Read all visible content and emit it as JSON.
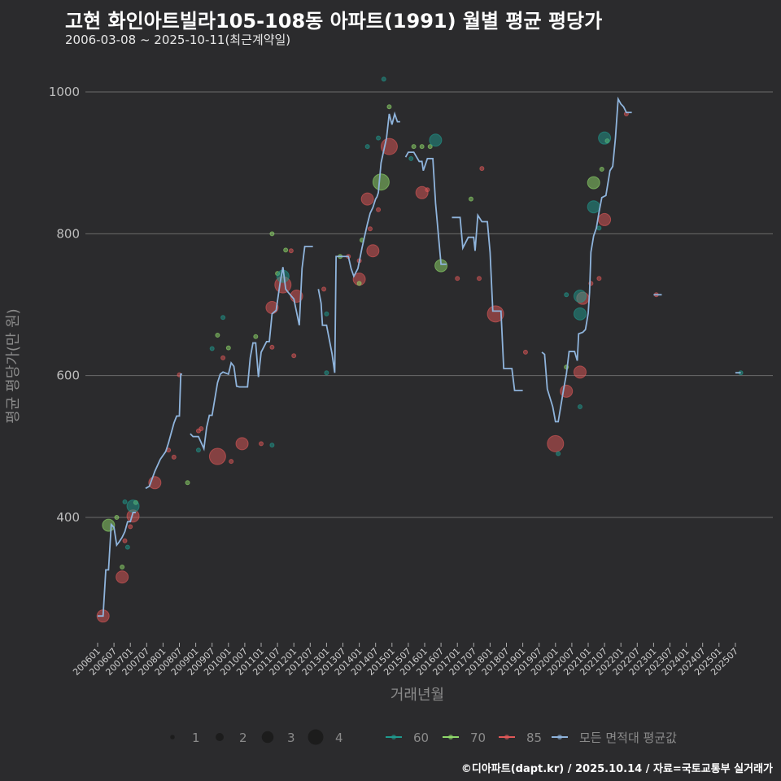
{
  "title": "고현 화인아트빌라105-108동 아파트(1991) 월별 평균 평당가",
  "subtitle": "2006-03-08 ~ 2025-10-11(최근계약일)",
  "credit": "©디아파트(dapt.kr) / 2025.10.14 / 자료=국토교통부 실거래가",
  "colors": {
    "background": "#2b2b2d",
    "grid": "#6b6b6b",
    "s60": "#1f9a8e",
    "s70": "#8fd96a",
    "s85": "#e05858",
    "avg": "#8fb4dc"
  },
  "chart_data": {
    "type": "scatter",
    "title": "고현 화인아트빌라105-108동 아파트(1991) 월별 평균 평당가",
    "xlabel": "거래년월",
    "ylabel": "평균 평당가(만 원)",
    "x_unit": "months since 2006-01",
    "ylim": [
      255,
      1050
    ],
    "y_ticks": [
      400,
      600,
      800,
      1000
    ],
    "x_tick_labels": [
      "200601",
      "200607",
      "200701",
      "200707",
      "200801",
      "200807",
      "200901",
      "200907",
      "201001",
      "201007",
      "201101",
      "201107",
      "201201",
      "201207",
      "201301",
      "201307",
      "201401",
      "201407",
      "201501",
      "201507",
      "201601",
      "201607",
      "201701",
      "201707",
      "201801",
      "201807",
      "201901",
      "201907",
      "202001",
      "202007",
      "202101",
      "202107",
      "202201",
      "202207",
      "202301",
      "202307",
      "202401",
      "202407",
      "202501",
      "202507"
    ],
    "grid": true,
    "legend": {
      "position": "bottom",
      "size_title": "",
      "sizes": [
        {
          "label": "1",
          "value": 1
        },
        {
          "label": "2",
          "value": 2
        },
        {
          "label": "3",
          "value": 3
        },
        {
          "label": "4",
          "value": 4
        }
      ],
      "series": [
        {
          "label": "60",
          "key": "s60"
        },
        {
          "label": "70",
          "key": "s70"
        },
        {
          "label": "85",
          "key": "s85"
        },
        {
          "label": "모든 면적대 평균값",
          "key": "avg"
        }
      ]
    },
    "average_line_segments": [
      [
        [
          0,
          261
        ],
        [
          2,
          261
        ],
        [
          3,
          326
        ],
        [
          4,
          326
        ],
        [
          5,
          390
        ],
        [
          6,
          386
        ],
        [
          7,
          361
        ],
        [
          8,
          366
        ],
        [
          9,
          372
        ],
        [
          10,
          380
        ],
        [
          11,
          394
        ],
        [
          12,
          394
        ],
        [
          13,
          407
        ],
        [
          14,
          407
        ]
      ],
      [
        [
          17.6,
          441
        ],
        [
          19,
          444
        ],
        [
          21,
          465
        ],
        [
          23,
          482
        ],
        [
          25,
          493
        ],
        [
          26,
          505
        ],
        [
          28,
          533
        ],
        [
          29,
          543
        ],
        [
          30,
          543
        ],
        [
          30.5,
          602
        ],
        [
          31,
          602
        ]
      ],
      [
        [
          34,
          518
        ],
        [
          35,
          514
        ],
        [
          37,
          514
        ],
        [
          39,
          497
        ],
        [
          40,
          527
        ],
        [
          41,
          544
        ],
        [
          42,
          544
        ],
        [
          44,
          590
        ],
        [
          45,
          602
        ],
        [
          46,
          605
        ],
        [
          48,
          602
        ],
        [
          49,
          618
        ],
        [
          50,
          613
        ],
        [
          51,
          585
        ],
        [
          52,
          584
        ],
        [
          55,
          584
        ],
        [
          56,
          625
        ],
        [
          57,
          646
        ],
        [
          58,
          646
        ],
        [
          59,
          598
        ],
        [
          60,
          633
        ],
        [
          62,
          648
        ],
        [
          63,
          648
        ],
        [
          64,
          687
        ],
        [
          65.5,
          692
        ],
        [
          67,
          732
        ],
        [
          68,
          753
        ],
        [
          69,
          722
        ],
        [
          70,
          717
        ],
        [
          72,
          708
        ],
        [
          74,
          671
        ],
        [
          75,
          751
        ],
        [
          76,
          782
        ],
        [
          79,
          782
        ]
      ],
      [
        [
          81,
          722
        ],
        [
          82,
          702
        ],
        [
          82.5,
          671
        ],
        [
          84,
          671
        ],
        [
          86,
          631
        ],
        [
          87,
          604
        ],
        [
          87.5,
          768
        ],
        [
          92,
          768
        ],
        [
          93,
          751
        ],
        [
          94,
          740
        ],
        [
          95.5,
          751
        ],
        [
          97,
          780
        ],
        [
          99,
          814
        ],
        [
          100,
          829
        ],
        [
          101,
          837
        ],
        [
          102,
          849
        ],
        [
          102.5,
          852
        ],
        [
          103,
          858
        ],
        [
          104,
          900
        ],
        [
          106,
          935
        ],
        [
          107,
          969
        ],
        [
          108,
          954
        ],
        [
          109,
          969
        ],
        [
          110,
          958
        ],
        [
          111,
          958
        ]
      ],
      [
        [
          113,
          908
        ],
        [
          114,
          915
        ],
        [
          116,
          915
        ],
        [
          118,
          902
        ],
        [
          119,
          902
        ],
        [
          119.5,
          889
        ],
        [
          121,
          906
        ],
        [
          123,
          906
        ],
        [
          124,
          843
        ],
        [
          126,
          757
        ],
        [
          128,
          757
        ]
      ],
      [
        [
          130,
          823
        ],
        [
          133,
          823
        ],
        [
          134,
          780
        ],
        [
          136,
          795
        ],
        [
          138,
          795
        ],
        [
          138.5,
          776
        ],
        [
          139.5,
          826
        ],
        [
          141,
          817
        ],
        [
          143,
          817
        ],
        [
          144,
          774
        ],
        [
          145,
          691
        ],
        [
          148,
          691
        ],
        [
          149,
          610
        ],
        [
          152,
          610
        ],
        [
          153,
          579
        ],
        [
          156,
          579
        ]
      ],
      [
        [
          163,
          633
        ],
        [
          164,
          630
        ],
        [
          165,
          581
        ],
        [
          167,
          556
        ],
        [
          168,
          535
        ],
        [
          169,
          535
        ],
        [
          171,
          581
        ],
        [
          172,
          602
        ],
        [
          173,
          634
        ],
        [
          175,
          634
        ],
        [
          176,
          621
        ],
        [
          176.5,
          659
        ],
        [
          178,
          661
        ],
        [
          179,
          665
        ],
        [
          180,
          688
        ],
        [
          180.5,
          717
        ],
        [
          181,
          774
        ],
        [
          182,
          797
        ],
        [
          183,
          808
        ],
        [
          184,
          831
        ],
        [
          185,
          851
        ],
        [
          186.5,
          854
        ],
        [
          188,
          889
        ],
        [
          189,
          895
        ],
        [
          190,
          935
        ],
        [
          190.5,
          963
        ],
        [
          191,
          990
        ],
        [
          192,
          983
        ],
        [
          193,
          979
        ],
        [
          194,
          971
        ],
        [
          196,
          971
        ]
      ],
      [
        [
          204,
          714
        ],
        [
          207,
          714
        ]
      ],
      [
        [
          234,
          604
        ],
        [
          236,
          604
        ]
      ]
    ],
    "points": [
      {
        "area": "85",
        "x": 2,
        "y": 261,
        "count": 3
      },
      {
        "area": "85",
        "x": 9,
        "y": 316,
        "count": 3
      },
      {
        "area": "85",
        "x": 13,
        "y": 402,
        "count": 3
      },
      {
        "area": "85",
        "x": 21,
        "y": 449,
        "count": 3
      },
      {
        "area": "85",
        "x": 44,
        "y": 486,
        "count": 4
      },
      {
        "area": "85",
        "x": 53,
        "y": 504,
        "count": 3
      },
      {
        "area": "85",
        "x": 64,
        "y": 696,
        "count": 3
      },
      {
        "area": "85",
        "x": 68,
        "y": 728,
        "count": 4
      },
      {
        "area": "85",
        "x": 73,
        "y": 712,
        "count": 3
      },
      {
        "area": "85",
        "x": 96,
        "y": 736,
        "count": 3
      },
      {
        "area": "85",
        "x": 99,
        "y": 849,
        "count": 3
      },
      {
        "area": "85",
        "x": 101,
        "y": 776,
        "count": 3
      },
      {
        "area": "85",
        "x": 107,
        "y": 923,
        "count": 4
      },
      {
        "area": "85",
        "x": 119,
        "y": 858,
        "count": 3
      },
      {
        "area": "85",
        "x": 146,
        "y": 687,
        "count": 4
      },
      {
        "area": "85",
        "x": 168,
        "y": 504,
        "count": 4
      },
      {
        "area": "85",
        "x": 172,
        "y": 578,
        "count": 3
      },
      {
        "area": "85",
        "x": 177,
        "y": 605,
        "count": 3
      },
      {
        "area": "85",
        "x": 178,
        "y": 709,
        "count": 3
      },
      {
        "area": "85",
        "x": 186,
        "y": 820,
        "count": 3
      },
      {
        "area": "85",
        "x": 10,
        "y": 367,
        "count": 1
      },
      {
        "area": "85",
        "x": 12,
        "y": 387,
        "count": 1
      },
      {
        "area": "85",
        "x": 26,
        "y": 495,
        "count": 1
      },
      {
        "area": "85",
        "x": 28,
        "y": 485,
        "count": 1
      },
      {
        "area": "85",
        "x": 30,
        "y": 601,
        "count": 1
      },
      {
        "area": "85",
        "x": 37,
        "y": 522,
        "count": 1
      },
      {
        "area": "85",
        "x": 38,
        "y": 525,
        "count": 1
      },
      {
        "area": "85",
        "x": 46,
        "y": 625,
        "count": 1
      },
      {
        "area": "85",
        "x": 49,
        "y": 479,
        "count": 1
      },
      {
        "area": "85",
        "x": 60,
        "y": 504,
        "count": 1
      },
      {
        "area": "85",
        "x": 64,
        "y": 640,
        "count": 1
      },
      {
        "area": "85",
        "x": 71,
        "y": 776,
        "count": 1
      },
      {
        "area": "85",
        "x": 72,
        "y": 628,
        "count": 1
      },
      {
        "area": "85",
        "x": 83,
        "y": 722,
        "count": 1
      },
      {
        "area": "85",
        "x": 92,
        "y": 768,
        "count": 1
      },
      {
        "area": "85",
        "x": 96,
        "y": 762,
        "count": 1
      },
      {
        "area": "85",
        "x": 100,
        "y": 807,
        "count": 1
      },
      {
        "area": "85",
        "x": 103,
        "y": 834,
        "count": 1
      },
      {
        "area": "85",
        "x": 121,
        "y": 862,
        "count": 1
      },
      {
        "area": "85",
        "x": 132,
        "y": 737,
        "count": 1
      },
      {
        "area": "85",
        "x": 140,
        "y": 737,
        "count": 1
      },
      {
        "area": "85",
        "x": 141,
        "y": 892,
        "count": 1
      },
      {
        "area": "85",
        "x": 157,
        "y": 633,
        "count": 1
      },
      {
        "area": "85",
        "x": 181,
        "y": 730,
        "count": 1
      },
      {
        "area": "85",
        "x": 184,
        "y": 737,
        "count": 1
      },
      {
        "area": "85",
        "x": 194,
        "y": 969,
        "count": 1
      },
      {
        "area": "85",
        "x": 205,
        "y": 714,
        "count": 1
      },
      {
        "area": "70",
        "x": 4,
        "y": 389,
        "count": 3
      },
      {
        "area": "70",
        "x": 104,
        "y": 873,
        "count": 4
      },
      {
        "area": "70",
        "x": 126,
        "y": 755,
        "count": 3
      },
      {
        "area": "70",
        "x": 182,
        "y": 872,
        "count": 3
      },
      {
        "area": "70",
        "x": 7,
        "y": 400,
        "count": 1
      },
      {
        "area": "70",
        "x": 9,
        "y": 330,
        "count": 1
      },
      {
        "area": "70",
        "x": 14,
        "y": 421,
        "count": 1
      },
      {
        "area": "70",
        "x": 33,
        "y": 449,
        "count": 1
      },
      {
        "area": "70",
        "x": 44,
        "y": 657,
        "count": 1
      },
      {
        "area": "70",
        "x": 48,
        "y": 639,
        "count": 1
      },
      {
        "area": "70",
        "x": 58,
        "y": 655,
        "count": 1
      },
      {
        "area": "70",
        "x": 64,
        "y": 800,
        "count": 1
      },
      {
        "area": "70",
        "x": 66,
        "y": 744,
        "count": 1
      },
      {
        "area": "70",
        "x": 69,
        "y": 777,
        "count": 1
      },
      {
        "area": "70",
        "x": 89,
        "y": 768,
        "count": 1
      },
      {
        "area": "70",
        "x": 96,
        "y": 730,
        "count": 1
      },
      {
        "area": "70",
        "x": 97,
        "y": 791,
        "count": 1
      },
      {
        "area": "70",
        "x": 107,
        "y": 979,
        "count": 1
      },
      {
        "area": "70",
        "x": 116,
        "y": 923,
        "count": 1
      },
      {
        "area": "70",
        "x": 119,
        "y": 923,
        "count": 1
      },
      {
        "area": "70",
        "x": 122,
        "y": 923,
        "count": 1
      },
      {
        "area": "70",
        "x": 137,
        "y": 849,
        "count": 1
      },
      {
        "area": "70",
        "x": 172,
        "y": 612,
        "count": 1
      },
      {
        "area": "70",
        "x": 185,
        "y": 891,
        "count": 1
      },
      {
        "area": "70",
        "x": 187,
        "y": 931,
        "count": 1
      },
      {
        "area": "60",
        "x": 13,
        "y": 416,
        "count": 3
      },
      {
        "area": "60",
        "x": 68,
        "y": 740,
        "count": 3
      },
      {
        "area": "60",
        "x": 124,
        "y": 932,
        "count": 3
      },
      {
        "area": "60",
        "x": 177,
        "y": 712,
        "count": 3
      },
      {
        "area": "60",
        "x": 177,
        "y": 687,
        "count": 3
      },
      {
        "area": "60",
        "x": 182,
        "y": 838,
        "count": 3
      },
      {
        "area": "60",
        "x": 186,
        "y": 935,
        "count": 3
      },
      {
        "area": "60",
        "x": 10,
        "y": 422,
        "count": 1
      },
      {
        "area": "60",
        "x": 11,
        "y": 358,
        "count": 1
      },
      {
        "area": "60",
        "x": 37,
        "y": 495,
        "count": 1
      },
      {
        "area": "60",
        "x": 42,
        "y": 638,
        "count": 1
      },
      {
        "area": "60",
        "x": 46,
        "y": 682,
        "count": 1
      },
      {
        "area": "60",
        "x": 64,
        "y": 502,
        "count": 1
      },
      {
        "area": "60",
        "x": 84,
        "y": 687,
        "count": 1
      },
      {
        "area": "60",
        "x": 84,
        "y": 604,
        "count": 1
      },
      {
        "area": "60",
        "x": 99,
        "y": 923,
        "count": 1
      },
      {
        "area": "60",
        "x": 103,
        "y": 935,
        "count": 1
      },
      {
        "area": "60",
        "x": 105,
        "y": 1018,
        "count": 1
      },
      {
        "area": "60",
        "x": 115,
        "y": 906,
        "count": 1
      },
      {
        "area": "60",
        "x": 169,
        "y": 490,
        "count": 1
      },
      {
        "area": "60",
        "x": 172,
        "y": 714,
        "count": 1
      },
      {
        "area": "60",
        "x": 177,
        "y": 556,
        "count": 1
      },
      {
        "area": "60",
        "x": 184,
        "y": 808,
        "count": 1
      },
      {
        "area": "60",
        "x": 236,
        "y": 604,
        "count": 1
      }
    ]
  }
}
